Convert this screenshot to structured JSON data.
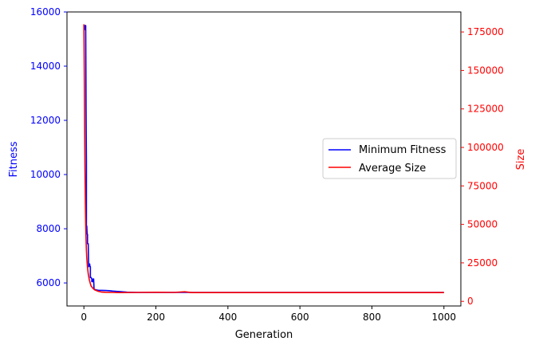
{
  "chart_data": {
    "type": "line",
    "xlabel": "Generation",
    "ylabel_left": "Fitness",
    "ylabel_right": "Size",
    "xlim": [
      -47,
      1047
    ],
    "ylim_left": [
      5150,
      16000
    ],
    "ylim_right": [
      -3000,
      188000
    ],
    "x_ticks": [
      0,
      200,
      400,
      600,
      800,
      1000
    ],
    "y_left_ticks": [
      6000,
      8000,
      10000,
      12000,
      14000,
      16000
    ],
    "y_right_ticks": [
      0,
      25000,
      50000,
      75000,
      100000,
      125000,
      150000,
      175000
    ],
    "legend_position": "center-right",
    "colors": {
      "left_axis": "#0000ff",
      "right_axis": "#ff0000"
    },
    "series": [
      {
        "name": "Minimum Fitness",
        "color": "#0000ff",
        "axis": "left",
        "x": [
          0,
          1,
          2,
          3,
          3,
          4,
          5,
          5,
          6,
          7,
          7,
          8,
          9,
          10,
          10,
          12,
          13,
          13,
          15,
          16,
          17,
          18,
          18,
          20,
          22,
          22,
          25,
          26,
          27,
          28,
          28,
          30,
          35,
          40,
          50,
          60,
          70,
          80,
          90,
          100,
          120,
          150,
          200,
          300,
          400,
          500,
          600,
          700,
          800,
          900,
          1000
        ],
        "y": [
          15500,
          15500,
          15500,
          15500,
          15350,
          15350,
          15500,
          15500,
          12500,
          10500,
          8100,
          8100,
          7800,
          7800,
          7450,
          7450,
          6700,
          6600,
          6700,
          6700,
          6600,
          6600,
          6200,
          6200,
          6150,
          6050,
          6050,
          6150,
          6150,
          5850,
          5780,
          5760,
          5740,
          5730,
          5725,
          5720,
          5715,
          5700,
          5690,
          5680,
          5660,
          5650,
          5650,
          5650,
          5650,
          5650,
          5650,
          5650,
          5650,
          5650,
          5650
        ]
      },
      {
        "name": "Average Size",
        "color": "#ff0000",
        "axis": "right",
        "x": [
          0,
          1,
          2,
          3,
          4,
          5,
          6,
          7,
          8,
          10,
          12,
          15,
          18,
          20,
          25,
          30,
          40,
          50,
          60,
          80,
          100,
          150,
          200,
          250,
          280,
          300,
          400,
          500,
          600,
          700,
          800,
          900,
          1000
        ],
        "y": [
          180000,
          150000,
          115000,
          85000,
          65000,
          50000,
          40000,
          33000,
          28000,
          22000,
          18000,
          14000,
          11500,
          10000,
          8500,
          7500,
          6500,
          6000,
          5900,
          5800,
          5700,
          5800,
          5900,
          5800,
          6200,
          5700,
          5700,
          5700,
          5700,
          5700,
          5700,
          5700,
          5700
        ]
      }
    ]
  }
}
